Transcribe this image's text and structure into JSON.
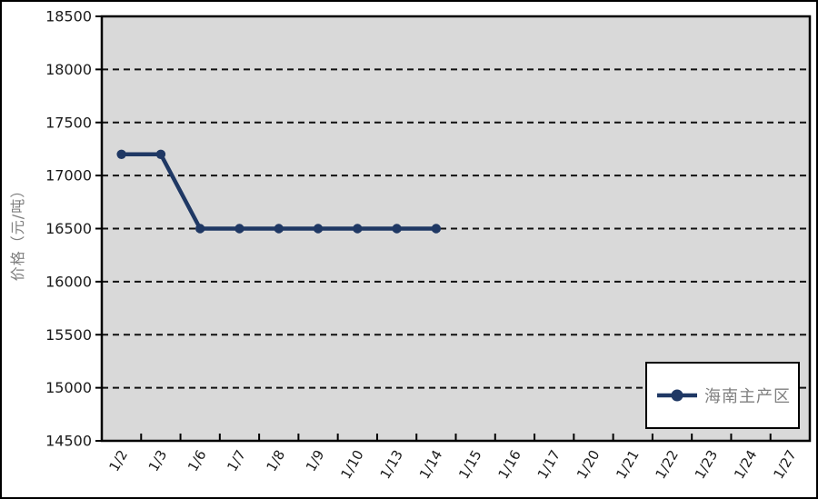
{
  "chart_data": {
    "type": "line",
    "title": "",
    "xlabel": "",
    "ylabel": "价格（元/吨）",
    "ylim": [
      14500,
      18500
    ],
    "ytick_step": 500,
    "ytick_labels": [
      "14500",
      "15000",
      "15500",
      "16000",
      "16500",
      "17000",
      "17500",
      "18000",
      "18500"
    ],
    "categories": [
      "1/2",
      "1/3",
      "1/6",
      "1/7",
      "1/8",
      "1/9",
      "1/10",
      "1/13",
      "1/14",
      "1/15",
      "1/16",
      "1/17",
      "1/20",
      "1/21",
      "1/22",
      "1/23",
      "1/24",
      "1/27"
    ],
    "series": [
      {
        "name": "海南主产区",
        "color": "#1f3864",
        "values": [
          17200,
          17200,
          16500,
          16500,
          16500,
          16500,
          16500,
          16500,
          16500,
          null,
          null,
          null,
          null,
          null,
          null,
          null,
          null,
          null
        ]
      }
    ],
    "grid": "horizontal-dashed",
    "legend_position": "bottom-right",
    "plot_background": "#d9d9d9"
  },
  "legend": {
    "items": [
      {
        "label": "海南主产区",
        "marker": "line-circle",
        "color": "#1f3864"
      }
    ]
  },
  "colors": {
    "series_line": "#1f3864",
    "plot_bg": "#d9d9d9",
    "axis_line": "#000000",
    "axis_text": "#1a1a1a",
    "muted_text": "#7f7f7f",
    "gridline": "#111111",
    "frame_border": "#000000"
  }
}
